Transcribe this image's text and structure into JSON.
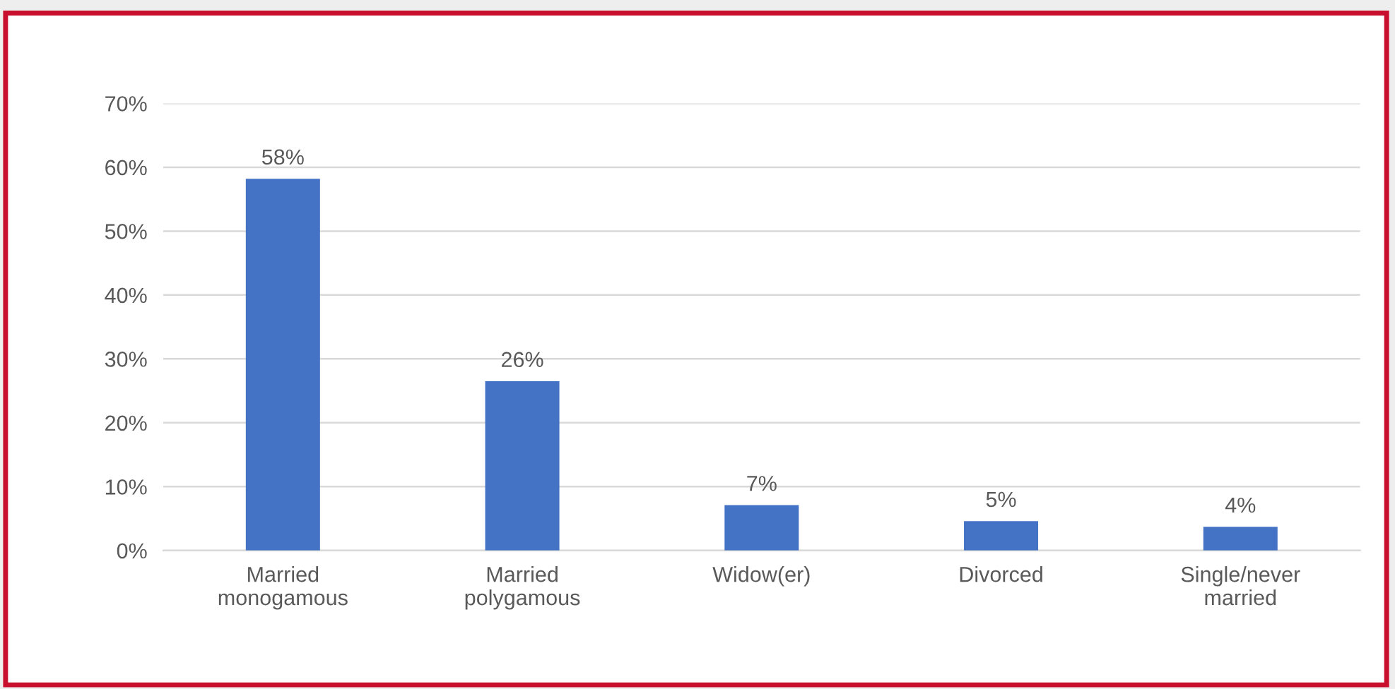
{
  "chart_data": {
    "type": "bar",
    "categories": [
      "Married\nmonogamous",
      "Married\npolygamous",
      "Widow(er)",
      "Divorced",
      "Single/never\nmarried"
    ],
    "values": [
      58.2,
      26.5,
      7.1,
      4.6,
      3.7
    ],
    "value_labels": [
      "58%",
      "26%",
      "7%",
      "5%",
      "4%"
    ],
    "color": "#4472c4",
    "ylim": [
      0,
      70
    ],
    "yticks": [
      {
        "value": 0,
        "label": "0%"
      },
      {
        "value": 10,
        "label": "10%"
      },
      {
        "value": 20,
        "label": "20%"
      },
      {
        "value": 30,
        "label": "30%"
      },
      {
        "value": 40,
        "label": "40%"
      },
      {
        "value": 50,
        "label": "50%"
      },
      {
        "value": 60,
        "label": "60%"
      },
      {
        "value": 70,
        "label": "70%"
      }
    ],
    "grid": "y",
    "legend": false
  }
}
